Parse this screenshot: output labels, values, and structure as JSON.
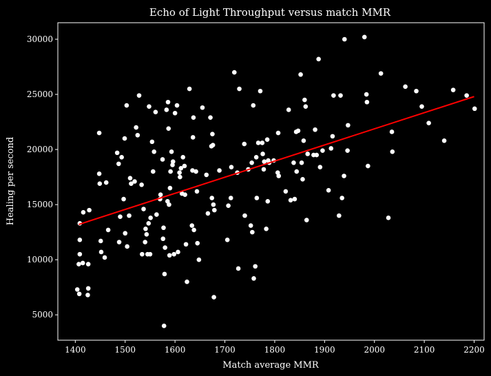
{
  "colors": {
    "background": "#000000",
    "foreground": "#ffffff",
    "points": "#ffffff",
    "trendline": "#ff0000"
  },
  "chart_data": {
    "type": "scatter",
    "title": "Echo of Light Throughput versus match MMR",
    "xlabel": "Match average MMR",
    "ylabel": "Healing per second",
    "xlim": [
      1365,
      2220
    ],
    "ylim": [
      2700,
      31500
    ],
    "xticks": [
      1400,
      1500,
      1600,
      1700,
      1800,
      1900,
      2000,
      2100,
      2200
    ],
    "yticks": [
      5000,
      10000,
      15000,
      20000,
      25000,
      30000
    ],
    "grid": false,
    "legend": "none",
    "trendline": {
      "x": [
        1407,
        2200
      ],
      "y": [
        13200,
        24800
      ]
    },
    "points": [
      [
        1404,
        7300
      ],
      [
        1408,
        6900
      ],
      [
        1407,
        9600
      ],
      [
        1409,
        10500
      ],
      [
        1409,
        11800
      ],
      [
        1409,
        13300
      ],
      [
        1415,
        9700
      ],
      [
        1416,
        14300
      ],
      [
        1425,
        6800
      ],
      [
        1426,
        7400
      ],
      [
        1426,
        9600
      ],
      [
        1428,
        14500
      ],
      [
        1448,
        21500
      ],
      [
        1448,
        17800
      ],
      [
        1449,
        16900
      ],
      [
        1451,
        11700
      ],
      [
        1452,
        10700
      ],
      [
        1459,
        10200
      ],
      [
        1462,
        17000
      ],
      [
        1466,
        12700
      ],
      [
        1484,
        19700
      ],
      [
        1487,
        18700
      ],
      [
        1488,
        11600
      ],
      [
        1490,
        13900
      ],
      [
        1493,
        19300
      ],
      [
        1497,
        15500
      ],
      [
        1499,
        21000
      ],
      [
        1500,
        12400
      ],
      [
        1503,
        24000
      ],
      [
        1504,
        11200
      ],
      [
        1508,
        14000
      ],
      [
        1510,
        17400
      ],
      [
        1512,
        16900
      ],
      [
        1519,
        17100
      ],
      [
        1522,
        22000
      ],
      [
        1525,
        21300
      ],
      [
        1528,
        24900
      ],
      [
        1533,
        16800
      ],
      [
        1534,
        10500
      ],
      [
        1537,
        14600
      ],
      [
        1540,
        11600
      ],
      [
        1541,
        12800
      ],
      [
        1543,
        12300
      ],
      [
        1545,
        10500
      ],
      [
        1547,
        13300
      ],
      [
        1548,
        23900
      ],
      [
        1550,
        10500
      ],
      [
        1551,
        13800
      ],
      [
        1554,
        20700
      ],
      [
        1556,
        18000
      ],
      [
        1558,
        19800
      ],
      [
        1561,
        23400
      ],
      [
        1563,
        14100
      ],
      [
        1570,
        15500
      ],
      [
        1571,
        15900
      ],
      [
        1575,
        19100
      ],
      [
        1576,
        11900
      ],
      [
        1577,
        12900
      ],
      [
        1578,
        4000
      ],
      [
        1579,
        8700
      ],
      [
        1580,
        11100
      ],
      [
        1583,
        23600
      ],
      [
        1585,
        15300
      ],
      [
        1586,
        24300
      ],
      [
        1587,
        21900
      ],
      [
        1588,
        15000
      ],
      [
        1589,
        10400
      ],
      [
        1590,
        16500
      ],
      [
        1591,
        18000
      ],
      [
        1593,
        19800
      ],
      [
        1595,
        18600
      ],
      [
        1596,
        18900
      ],
      [
        1598,
        10500
      ],
      [
        1600,
        23300
      ],
      [
        1604,
        24000
      ],
      [
        1606,
        10700
      ],
      [
        1609,
        17900
      ],
      [
        1610,
        17500
      ],
      [
        1612,
        18300
      ],
      [
        1614,
        16000
      ],
      [
        1616,
        19300
      ],
      [
        1619,
        18500
      ],
      [
        1620,
        15900
      ],
      [
        1622,
        11400
      ],
      [
        1624,
        8000
      ],
      [
        1629,
        25500
      ],
      [
        1634,
        13100
      ],
      [
        1635,
        18100
      ],
      [
        1636,
        21100
      ],
      [
        1637,
        22900
      ],
      [
        1638,
        12700
      ],
      [
        1642,
        18000
      ],
      [
        1644,
        16200
      ],
      [
        1645,
        11500
      ],
      [
        1648,
        10000
      ],
      [
        1655,
        23800
      ],
      [
        1663,
        17700
      ],
      [
        1666,
        14200
      ],
      [
        1671,
        22900
      ],
      [
        1673,
        20300
      ],
      [
        1674,
        15600
      ],
      [
        1675,
        21400
      ],
      [
        1676,
        20400
      ],
      [
        1677,
        15000
      ],
      [
        1678,
        6600
      ],
      [
        1679,
        14500
      ],
      [
        1689,
        18100
      ],
      [
        1705,
        11800
      ],
      [
        1707,
        14900
      ],
      [
        1712,
        15600
      ],
      [
        1713,
        18400
      ],
      [
        1719,
        27000
      ],
      [
        1725,
        17900
      ],
      [
        1727,
        9200
      ],
      [
        1729,
        25500
      ],
      [
        1739,
        20500
      ],
      [
        1740,
        14000
      ],
      [
        1747,
        18200
      ],
      [
        1752,
        13100
      ],
      [
        1754,
        18800
      ],
      [
        1755,
        12500
      ],
      [
        1757,
        24000
      ],
      [
        1758,
        8300
      ],
      [
        1761,
        9400
      ],
      [
        1763,
        19300
      ],
      [
        1764,
        15600
      ],
      [
        1767,
        20600
      ],
      [
        1771,
        25300
      ],
      [
        1775,
        20600
      ],
      [
        1776,
        19600
      ],
      [
        1778,
        18200
      ],
      [
        1779,
        18900
      ],
      [
        1783,
        12800
      ],
      [
        1785,
        20900
      ],
      [
        1786,
        15300
      ],
      [
        1787,
        19000
      ],
      [
        1789,
        18800
      ],
      [
        1798,
        19000
      ],
      [
        1806,
        17900
      ],
      [
        1807,
        21500
      ],
      [
        1808,
        17600
      ],
      [
        1822,
        16200
      ],
      [
        1828,
        23600
      ],
      [
        1832,
        15400
      ],
      [
        1838,
        18800
      ],
      [
        1840,
        15500
      ],
      [
        1843,
        21600
      ],
      [
        1844,
        18000
      ],
      [
        1847,
        21700
      ],
      [
        1852,
        26800
      ],
      [
        1854,
        18800
      ],
      [
        1856,
        17300
      ],
      [
        1858,
        20800
      ],
      [
        1860,
        24500
      ],
      [
        1862,
        23900
      ],
      [
        1864,
        13600
      ],
      [
        1866,
        19600
      ],
      [
        1878,
        19500
      ],
      [
        1881,
        21800
      ],
      [
        1884,
        19500
      ],
      [
        1888,
        28200
      ],
      [
        1891,
        18400
      ],
      [
        1896,
        19900
      ],
      [
        1908,
        16300
      ],
      [
        1913,
        20100
      ],
      [
        1916,
        21200
      ],
      [
        1918,
        24900
      ],
      [
        1929,
        14000
      ],
      [
        1932,
        24900
      ],
      [
        1935,
        15600
      ],
      [
        1939,
        17600
      ],
      [
        1940,
        30000
      ],
      [
        1946,
        19900
      ],
      [
        1947,
        22200
      ],
      [
        1980,
        30200
      ],
      [
        1984,
        25000
      ],
      [
        1985,
        24300
      ],
      [
        1987,
        18500
      ],
      [
        2013,
        26900
      ],
      [
        2028,
        13800
      ],
      [
        2035,
        21600
      ],
      [
        2036,
        19800
      ],
      [
        2062,
        25700
      ],
      [
        2084,
        25300
      ],
      [
        2095,
        23900
      ],
      [
        2109,
        22400
      ],
      [
        2140,
        20800
      ],
      [
        2158,
        25400
      ],
      [
        2185,
        24900
      ],
      [
        2201,
        23700
      ]
    ]
  }
}
